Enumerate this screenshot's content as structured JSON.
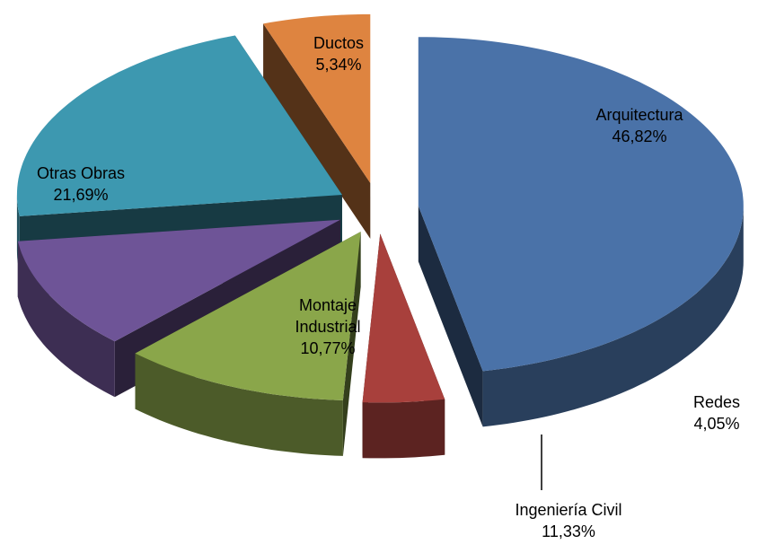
{
  "chart_data": {
    "type": "pie",
    "categories": [
      "Arquitectura",
      "Redes",
      "Ingeniería Civil",
      "Montaje Industrial",
      "Otras Obras",
      "Ductos"
    ],
    "values": [
      46.82,
      4.05,
      11.33,
      10.77,
      21.69,
      5.34
    ],
    "value_labels": [
      "46,82%",
      "4,05%",
      "11,33%",
      "10,77%",
      "21,69%",
      "5,34%"
    ],
    "colors": [
      "#4a72a8",
      "#a8403c",
      "#8aa64a",
      "#6e5497",
      "#3d98b0",
      "#de8440"
    ]
  }
}
